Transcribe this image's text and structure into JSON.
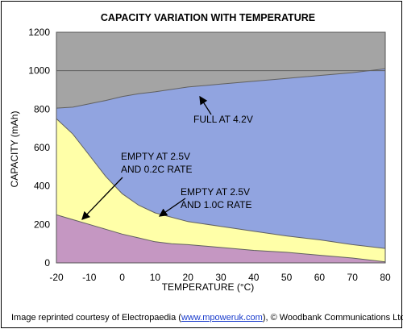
{
  "chart_data": {
    "type": "area",
    "title": "CAPACITY VARIATION WITH TEMPERATURE",
    "xlabel": "TEMPERATURE (°C)",
    "ylabel": "CAPACITY (mAh)",
    "xlim": [
      -20,
      80
    ],
    "ylim": [
      0,
      1200
    ],
    "x_ticks": [
      "-20",
      "-10",
      "0",
      "10",
      "20",
      "30",
      "40",
      "50",
      "60",
      "70",
      "80"
    ],
    "y_ticks": [
      "0",
      "200",
      "400",
      "600",
      "800",
      "1000",
      "1200"
    ],
    "grid": "horizontal line at 1000",
    "series": [
      {
        "name": "FULL AT 4.2V",
        "x": [
          -20,
          -15,
          -10,
          -5,
          0,
          5,
          10,
          20,
          30,
          40,
          50,
          60,
          70,
          80
        ],
        "y": [
          805,
          810,
          828,
          845,
          865,
          880,
          890,
          915,
          930,
          945,
          960,
          975,
          990,
          1010
        ]
      },
      {
        "name": "EMPTY AT 2.5V AND 1.0C RATE",
        "x": [
          -20,
          -15,
          -10,
          -5,
          0,
          5,
          10,
          20,
          30,
          40,
          50,
          60,
          70,
          80
        ],
        "y": [
          750,
          670,
          560,
          450,
          360,
          300,
          260,
          215,
          190,
          165,
          140,
          120,
          95,
          75
        ]
      },
      {
        "name": "EMPTY AT 2.5V AND 0.2C RATE",
        "x": [
          -20,
          -15,
          -10,
          -5,
          0,
          5,
          10,
          15,
          20,
          30,
          40,
          50,
          60,
          70,
          80
        ],
        "y": [
          250,
          225,
          200,
          175,
          150,
          130,
          110,
          100,
          95,
          80,
          65,
          55,
          40,
          25,
          5
        ]
      }
    ],
    "colors": {
      "background": "#a4a4a4",
      "full_area": "#91a4e0",
      "rate_1c_area": "#ffffa8",
      "rate_02c_area": "#c597c2",
      "line": "#606060"
    },
    "annotations": {
      "full": "FULL AT 4.2V",
      "empty_02c_line1": "EMPTY AT 2.5V",
      "empty_02c_line2": "AND 0.2C RATE",
      "empty_1c_line1": "EMPTY AT 2.5V",
      "empty_1c_line2": "AND 1.0C RATE"
    }
  },
  "credit": {
    "prefix": "Image reprinted courtesy of Electropaedia (",
    "link": "www.mpoweruk.com",
    "suffix": "), © Woodbank Communications Ltd."
  }
}
